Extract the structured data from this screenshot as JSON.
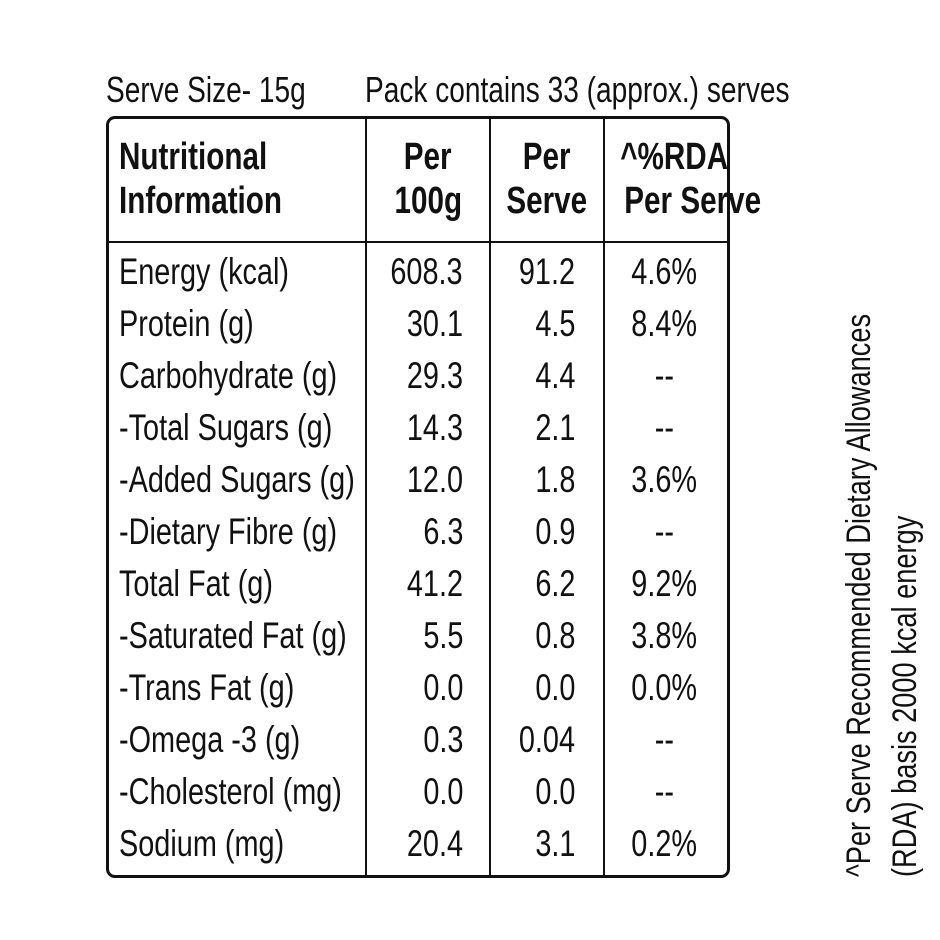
{
  "serve_size": "Serve Size- 15g",
  "pack_contains": "Pack contains 33 (approx.) serves",
  "header": {
    "col1_line1": "Nutritional",
    "col1_line2": "Information",
    "col2_line1": "Per",
    "col2_line2": "100g",
    "col3_line1": "Per",
    "col3_line2": "Serve",
    "col4_line1": "^%RDA",
    "col4_line2": "Per Serve"
  },
  "rows": [
    {
      "name": "Energy (kcal)",
      "per100g": "608.3",
      "perServe": "91.2",
      "rda": "4.6%"
    },
    {
      "name": "Protein (g)",
      "per100g": "30.1",
      "perServe": "4.5",
      "rda": "8.4%"
    },
    {
      "name": "Carbohydrate (g)",
      "per100g": "29.3",
      "perServe": "4.4",
      "rda": "--"
    },
    {
      "name": "-Total Sugars (g)",
      "per100g": "14.3",
      "perServe": "2.1",
      "rda": "--"
    },
    {
      "name": "-Added Sugars (g)",
      "per100g": "12.0",
      "perServe": "1.8",
      "rda": "3.6%"
    },
    {
      "name": "-Dietary Fibre (g)",
      "per100g": "6.3",
      "perServe": "0.9",
      "rda": "--"
    },
    {
      "name": "Total Fat (g)",
      "per100g": "41.2",
      "perServe": "6.2",
      "rda": "9.2%"
    },
    {
      "name": "-Saturated Fat (g)",
      "per100g": "5.5",
      "perServe": "0.8",
      "rda": "3.8%"
    },
    {
      "name": "-Trans Fat (g)",
      "per100g": "0.0",
      "perServe": "0.0",
      "rda": "0.0%"
    },
    {
      "name": "-Omega -3 (g)",
      "per100g": "0.3",
      "perServe": "0.04",
      "rda": "--"
    },
    {
      "name": "-Cholesterol (mg)",
      "per100g": "0.0",
      "perServe": "0.0",
      "rda": "--"
    },
    {
      "name": "Sodium (mg)",
      "per100g": "20.4",
      "perServe": "3.1",
      "rda": "0.2%"
    }
  ],
  "footnote": {
    "line1": "^Per Serve Recommended Dietary Allowances",
    "line2": "(RDA) basis 2000 kcal energy"
  },
  "colors": {
    "ink": "#111111",
    "background": "#ffffff"
  }
}
